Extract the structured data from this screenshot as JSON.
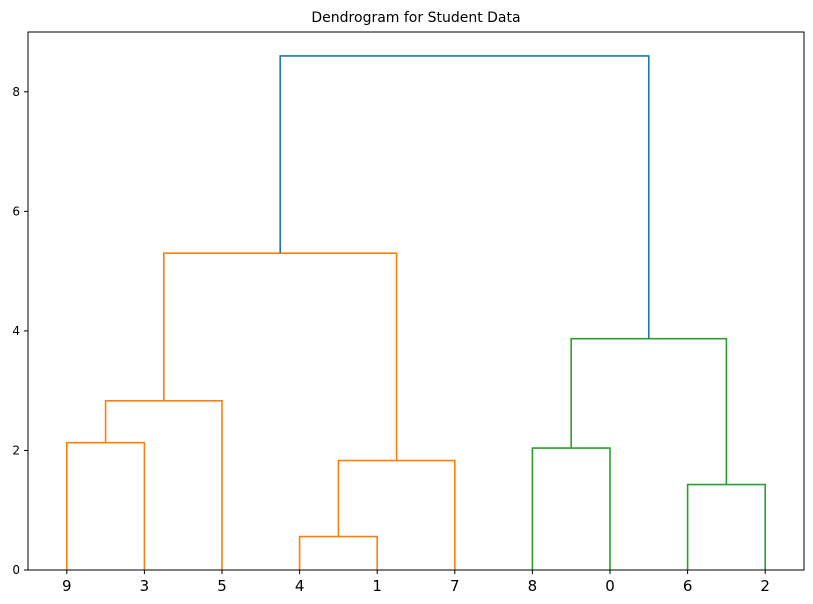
{
  "chart_data": {
    "type": "dendrogram",
    "title": "Dendrogram for Student Data",
    "xlabel": "",
    "ylabel": "",
    "ylim": [
      0,
      9
    ],
    "yticks": [
      0,
      2,
      4,
      6,
      8
    ],
    "grid": false,
    "leaf_order": [
      "9",
      "3",
      "5",
      "4",
      "1",
      "7",
      "8",
      "0",
      "6",
      "2"
    ],
    "colors": {
      "cluster_a": "#ff7f0e",
      "cluster_b": "#2ca02c",
      "above_threshold": "#1f77b4",
      "axis": "#000000"
    },
    "links": [
      {
        "left": "9",
        "right": "3",
        "height": 2.13,
        "color": "cluster_a"
      },
      {
        "left": "4",
        "right": "1",
        "height": 0.56,
        "color": "cluster_a"
      },
      {
        "left": "6",
        "right": "2",
        "height": 1.43,
        "color": "cluster_b"
      },
      {
        "left": "[4,1]",
        "right": "7",
        "height": 1.83,
        "color": "cluster_a"
      },
      {
        "left": "8",
        "right": "0",
        "height": 2.04,
        "color": "cluster_b"
      },
      {
        "left": "[9,3]",
        "right": "5",
        "height": 2.83,
        "color": "cluster_a"
      },
      {
        "left": "[8,0]",
        "right": "[6,2]",
        "height": 3.87,
        "color": "cluster_b"
      },
      {
        "left": "[9,3,5]",
        "right": "[4,1,7]",
        "height": 5.3,
        "color": "cluster_a"
      },
      {
        "left": "[9,3,5,4,1,7]",
        "right": "[8,0,6,2]",
        "height": 8.6,
        "color": "above_threshold"
      }
    ]
  }
}
